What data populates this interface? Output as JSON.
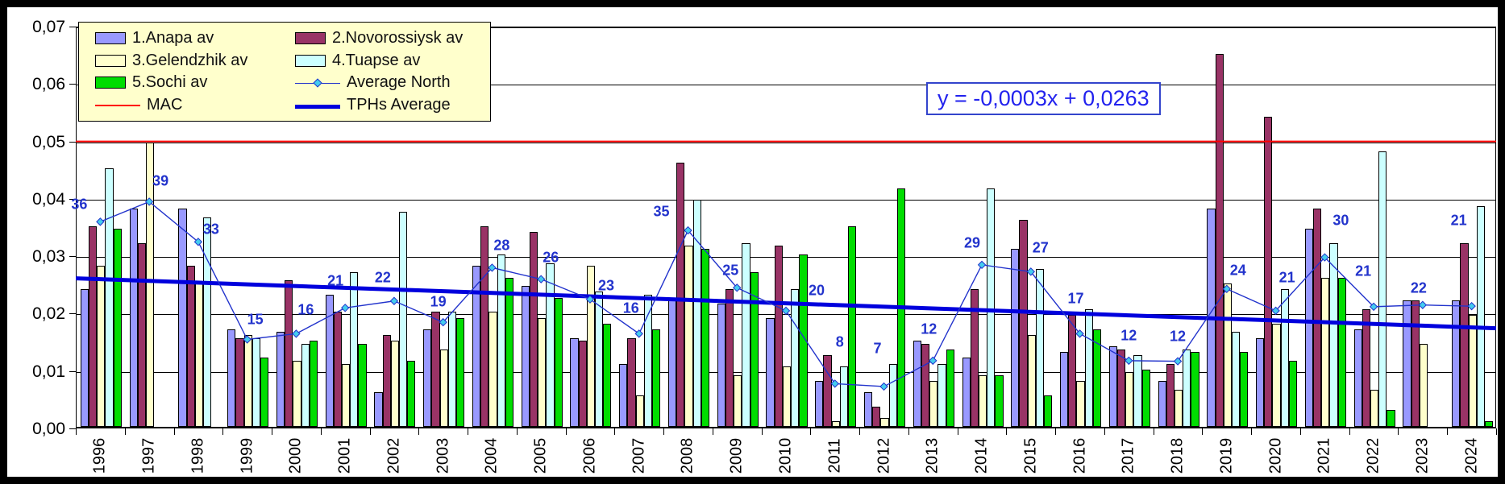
{
  "equation_box": {
    "text": "y = -0,0003x + 0,0263"
  },
  "y_axis": {
    "tick_labels": [
      "0,07",
      "0,06",
      "0,05",
      "0,04",
      "0,03",
      "0,02",
      "0,01",
      "0,00"
    ],
    "min": 0,
    "max": 0.07,
    "step": 0.01
  },
  "legend": {
    "items": [
      {
        "label": "1.Anapa av",
        "type": "swatch",
        "color": "#9999FF"
      },
      {
        "label": "2.Novorossiysk av",
        "type": "swatch",
        "color": "#993366"
      },
      {
        "label": "3.Gelendzhik av",
        "type": "swatch",
        "color": "#FFFFCC"
      },
      {
        "label": "4.Tuapse av",
        "type": "swatch",
        "color": "#CCFFFF"
      },
      {
        "label": "5.Sochi av",
        "type": "swatch",
        "color": "#00DD00"
      },
      {
        "label": "Average North",
        "type": "line-marker",
        "color": "#2233CC",
        "marker_color": "#44CCEE"
      },
      {
        "label": "MAC",
        "type": "line-thin",
        "color": "#FF0000"
      },
      {
        "label": "TPHs Average",
        "type": "line-thick",
        "color": "#0000DD"
      }
    ]
  },
  "colors": {
    "anapa": "#9999FF",
    "novorossiysk": "#993366",
    "gelendzhik": "#FFFFCC",
    "tuapse": "#CCFFFF",
    "sochi": "#00DD00",
    "avg_north_line": "#2233CC",
    "avg_north_marker_fill": "#44CCEE",
    "mac_line": "#FF0000",
    "tph_trend_line": "#0000DD",
    "data_label_text": "#2233CC",
    "equation_text": "#2222EE",
    "legend_bg": "#FFFFCC"
  },
  "chart_data": {
    "type": "bar",
    "title": "",
    "xlabel": "",
    "ylabel": "",
    "ylim": [
      0,
      0.07
    ],
    "grid": true,
    "legend_position": "top-left",
    "categories": [
      "1996",
      "1997",
      "1998",
      "1999",
      "2000",
      "2001",
      "2002",
      "2003",
      "2004",
      "2005",
      "2006",
      "2007",
      "2008",
      "2009",
      "2010",
      "2011",
      "2012",
      "2013",
      "2014",
      "2015",
      "2016",
      "2017",
      "2018",
      "2019",
      "2020",
      "2021",
      "2022",
      "2023",
      "2024"
    ],
    "series": [
      {
        "name": "1.Anapa av",
        "type": "bar",
        "color": "#9999FF",
        "values": [
          0.024,
          0.038,
          0.038,
          0.017,
          0.0165,
          0.023,
          0.006,
          0.017,
          0.028,
          0.0245,
          0.0155,
          0.011,
          0.0225,
          0.0215,
          0.019,
          0.008,
          0.006,
          0.015,
          0.012,
          0.031,
          0.013,
          0.014,
          0.008,
          0.038,
          0.0155,
          0.0345,
          0.017,
          0.022,
          0.022
        ]
      },
      {
        "name": "2.Novorossiysk av",
        "type": "bar",
        "color": "#993366",
        "values": [
          0.035,
          0.032,
          0.028,
          0.0155,
          0.0255,
          0.02,
          0.016,
          0.02,
          0.035,
          0.034,
          0.015,
          0.0155,
          0.046,
          0.024,
          0.0315,
          0.0125,
          0.0035,
          0.0145,
          0.024,
          0.036,
          0.0195,
          0.0135,
          0.011,
          0.065,
          0.054,
          0.038,
          0.0205,
          0.022,
          0.032
        ]
      },
      {
        "name": "3.Gelendzhik av",
        "type": "bar",
        "color": "#FFFFCC",
        "values": [
          0.028,
          0.0495,
          0.025,
          0.016,
          0.0115,
          0.011,
          0.015,
          0.0135,
          0.02,
          0.019,
          0.028,
          0.0055,
          0.0315,
          0.009,
          0.0105,
          0.001,
          0.0015,
          0.008,
          0.009,
          0.016,
          0.008,
          0.0095,
          0.0065,
          0.025,
          0.018,
          0.026,
          0.0065,
          0.0145,
          0.0195
        ]
      },
      {
        "name": "4.Tuapse av",
        "type": "bar",
        "color": "#CCFFFF",
        "values": [
          0.045,
          null,
          0.0365,
          0.0155,
          0.0145,
          0.027,
          0.0375,
          0.02,
          0.03,
          0.0285,
          0.0235,
          0.023,
          0.0395,
          0.032,
          0.024,
          0.0105,
          0.011,
          0.011,
          0.0415,
          0.0275,
          0.0205,
          0.0125,
          0.0135,
          0.0165,
          0.024,
          0.032,
          0.048,
          null,
          0.0385
        ]
      },
      {
        "name": "5.Sochi av",
        "type": "bar",
        "color": "#00DD00",
        "values": [
          0.0345,
          null,
          null,
          0.012,
          0.015,
          0.0145,
          0.0115,
          0.019,
          0.026,
          0.0225,
          0.018,
          0.017,
          0.031,
          0.027,
          0.03,
          0.035,
          0.0415,
          0.0135,
          0.009,
          0.0055,
          0.017,
          0.01,
          0.013,
          0.013,
          0.0115,
          0.026,
          0.003,
          null,
          0.001
        ]
      },
      {
        "name": "Average North",
        "type": "line",
        "color": "#2233CC",
        "values": [
          0.036,
          0.0395,
          0.0325,
          0.0155,
          0.0165,
          0.021,
          0.0222,
          0.0185,
          0.028,
          0.026,
          0.0225,
          0.0165,
          0.0345,
          0.0245,
          0.0205,
          0.0078,
          0.0073,
          0.0118,
          0.0285,
          0.0273,
          0.0165,
          0.0118,
          0.0117,
          0.0243,
          0.0205,
          0.0298,
          0.0212,
          0.0215,
          0.0213
        ],
        "point_labels": [
          "36",
          "39",
          "33",
          "15",
          "16",
          "21",
          "22",
          "19",
          "28",
          "26",
          "23",
          "16",
          "35",
          "25",
          "20",
          "8",
          "7",
          "12",
          "29",
          "27",
          "17",
          "12",
          "12",
          "24",
          "21",
          "30",
          "21",
          "22",
          "21"
        ]
      },
      {
        "name": "MAC",
        "type": "hline",
        "color": "#FF0000",
        "value": 0.05
      },
      {
        "name": "TPHs Average",
        "type": "trend",
        "color": "#0000DD",
        "start_value": 0.026,
        "end_value": 0.0176,
        "equation": "y = -0,0003x + 0,0263"
      }
    ]
  }
}
